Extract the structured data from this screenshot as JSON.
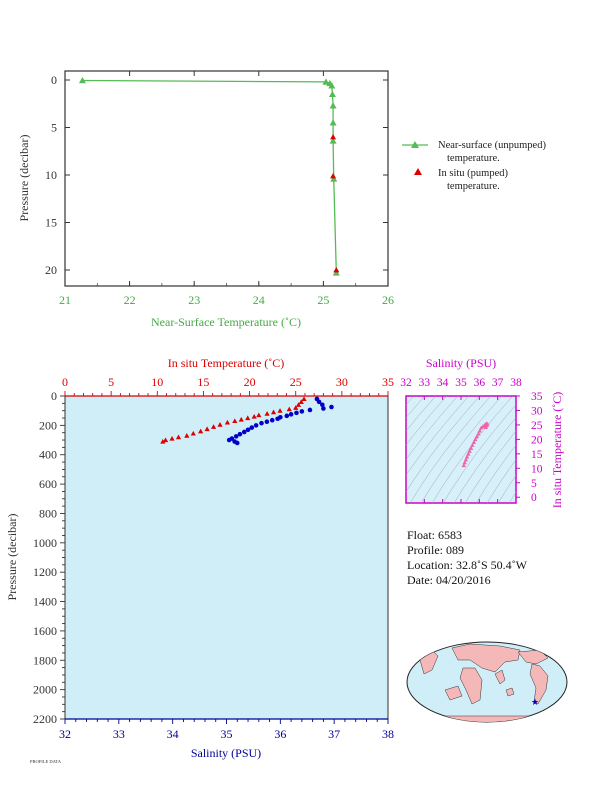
{
  "chart_data": [
    {
      "type": "line",
      "xlabel": "Near-Surface Temperature (˚C)",
      "ylabel": "Pressure (decibar)",
      "xlim": [
        21,
        26
      ],
      "ylim": [
        0,
        22
      ],
      "y_inverted": true,
      "x_ticks": [
        "21",
        "22",
        "23",
        "24",
        "25",
        "26"
      ],
      "y_ticks": [
        "0",
        "5",
        "10",
        "15",
        "20"
      ],
      "series": [
        {
          "name": "Near-surface (unpumped) temperature.",
          "color": "#55bb55",
          "marker": "triangle",
          "points": [
            [
              21.27,
              0.05
            ],
            [
              25.04,
              0.2
            ],
            [
              25.1,
              0.35
            ],
            [
              25.13,
              0.6
            ],
            [
              25.14,
              1.5
            ],
            [
              25.15,
              2.7
            ],
            [
              25.15,
              4.5
            ],
            [
              25.15,
              6.4
            ],
            [
              25.16,
              10.4
            ],
            [
              25.2,
              20.3
            ]
          ]
        },
        {
          "name": "In situ (pumped) temperature.",
          "color": "#dd0000",
          "marker": "triangle",
          "points": [
            [
              25.15,
              6.0
            ],
            [
              25.15,
              10.1
            ],
            [
              25.2,
              20.0
            ]
          ]
        }
      ],
      "legend": [
        {
          "line1": "Near-surface (unpumped)",
          "line2": "temperature."
        },
        {
          "line1": "In situ (pumped)",
          "line2": "temperature."
        }
      ]
    },
    {
      "type": "scatter",
      "top_xlabel": "In situ Temperature (˚C)",
      "bottom_xlabel": "Salinity (PSU)",
      "ylabel": "Pressure (decibar)",
      "top_xlim": [
        0,
        35
      ],
      "bottom_xlim": [
        32,
        38
      ],
      "ylim": [
        0,
        2200
      ],
      "y_inverted": true,
      "top_ticks": [
        "0",
        "5",
        "10",
        "15",
        "20",
        "25",
        "30",
        "35"
      ],
      "bottom_ticks": [
        "32",
        "33",
        "34",
        "35",
        "36",
        "37",
        "38"
      ],
      "y_ticks": [
        "0",
        "200",
        "400",
        "600",
        "800",
        "1000",
        "1200",
        "1400",
        "1600",
        "1800",
        "2000",
        "2200"
      ],
      "temperature": [
        [
          25.9,
          20
        ],
        [
          25.6,
          40
        ],
        [
          25.3,
          60
        ],
        [
          25.0,
          80
        ],
        [
          24.3,
          90
        ],
        [
          23.3,
          100
        ],
        [
          22.6,
          110
        ],
        [
          21.9,
          120
        ],
        [
          21.0,
          130
        ],
        [
          20.5,
          140
        ],
        [
          19.8,
          150
        ],
        [
          19.1,
          160
        ],
        [
          18.4,
          170
        ],
        [
          17.6,
          180
        ],
        [
          16.8,
          195
        ],
        [
          16.1,
          210
        ],
        [
          15.4,
          225
        ],
        [
          14.7,
          240
        ],
        [
          13.9,
          255
        ],
        [
          13.2,
          270
        ],
        [
          12.3,
          280
        ],
        [
          11.6,
          290
        ],
        [
          10.9,
          300
        ],
        [
          10.6,
          310
        ]
      ],
      "salinity": [
        [
          36.68,
          20
        ],
        [
          36.72,
          40
        ],
        [
          36.78,
          60
        ],
        [
          36.95,
          75
        ],
        [
          36.8,
          85
        ],
        [
          36.55,
          95
        ],
        [
          36.4,
          105
        ],
        [
          36.3,
          115
        ],
        [
          36.2,
          125
        ],
        [
          36.12,
          135
        ],
        [
          36.0,
          145
        ],
        [
          35.95,
          155
        ],
        [
          35.85,
          165
        ],
        [
          35.75,
          175
        ],
        [
          35.65,
          185
        ],
        [
          35.55,
          200
        ],
        [
          35.47,
          215
        ],
        [
          35.4,
          230
        ],
        [
          35.33,
          245
        ],
        [
          35.25,
          260
        ],
        [
          35.18,
          275
        ],
        [
          35.1,
          290
        ],
        [
          35.05,
          300
        ],
        [
          35.15,
          310
        ],
        [
          35.2,
          320
        ]
      ],
      "temperature_color": "#dd0000",
      "salinity_color": "#0000cc"
    },
    {
      "type": "scatter",
      "top_xlabel": "Salinity (PSU)",
      "right_ylabel": "In situ Temperature (˚C)",
      "xlim": [
        32,
        38
      ],
      "ylim": [
        -2,
        35
      ],
      "x_ticks": [
        "32",
        "33",
        "34",
        "35",
        "36",
        "37",
        "38"
      ],
      "y_ticks": [
        "0",
        "5",
        "10",
        "15",
        "20",
        "25",
        "30",
        "35"
      ],
      "points": [
        [
          35.15,
          11
        ],
        [
          35.2,
          12
        ],
        [
          35.27,
          13
        ],
        [
          35.33,
          14
        ],
        [
          35.4,
          15
        ],
        [
          35.47,
          16
        ],
        [
          35.55,
          17
        ],
        [
          35.62,
          18
        ],
        [
          35.7,
          19
        ],
        [
          35.78,
          20
        ],
        [
          35.86,
          21
        ],
        [
          35.95,
          22
        ],
        [
          36.02,
          23
        ],
        [
          36.1,
          24
        ],
        [
          36.2,
          24.5
        ],
        [
          36.3,
          25
        ],
        [
          36.38,
          25.5
        ],
        [
          36.45,
          25.3
        ],
        [
          36.4,
          24.8
        ],
        [
          36.35,
          24.2
        ]
      ],
      "color": "#ee66aa"
    }
  ],
  "info": {
    "float": "Float:  6583",
    "profile": "Profile:  089",
    "location": "Location:  32.8˚S  50.4˚W",
    "date": "Date:  04/20/2016"
  },
  "footnote": "PROFILE DATA"
}
